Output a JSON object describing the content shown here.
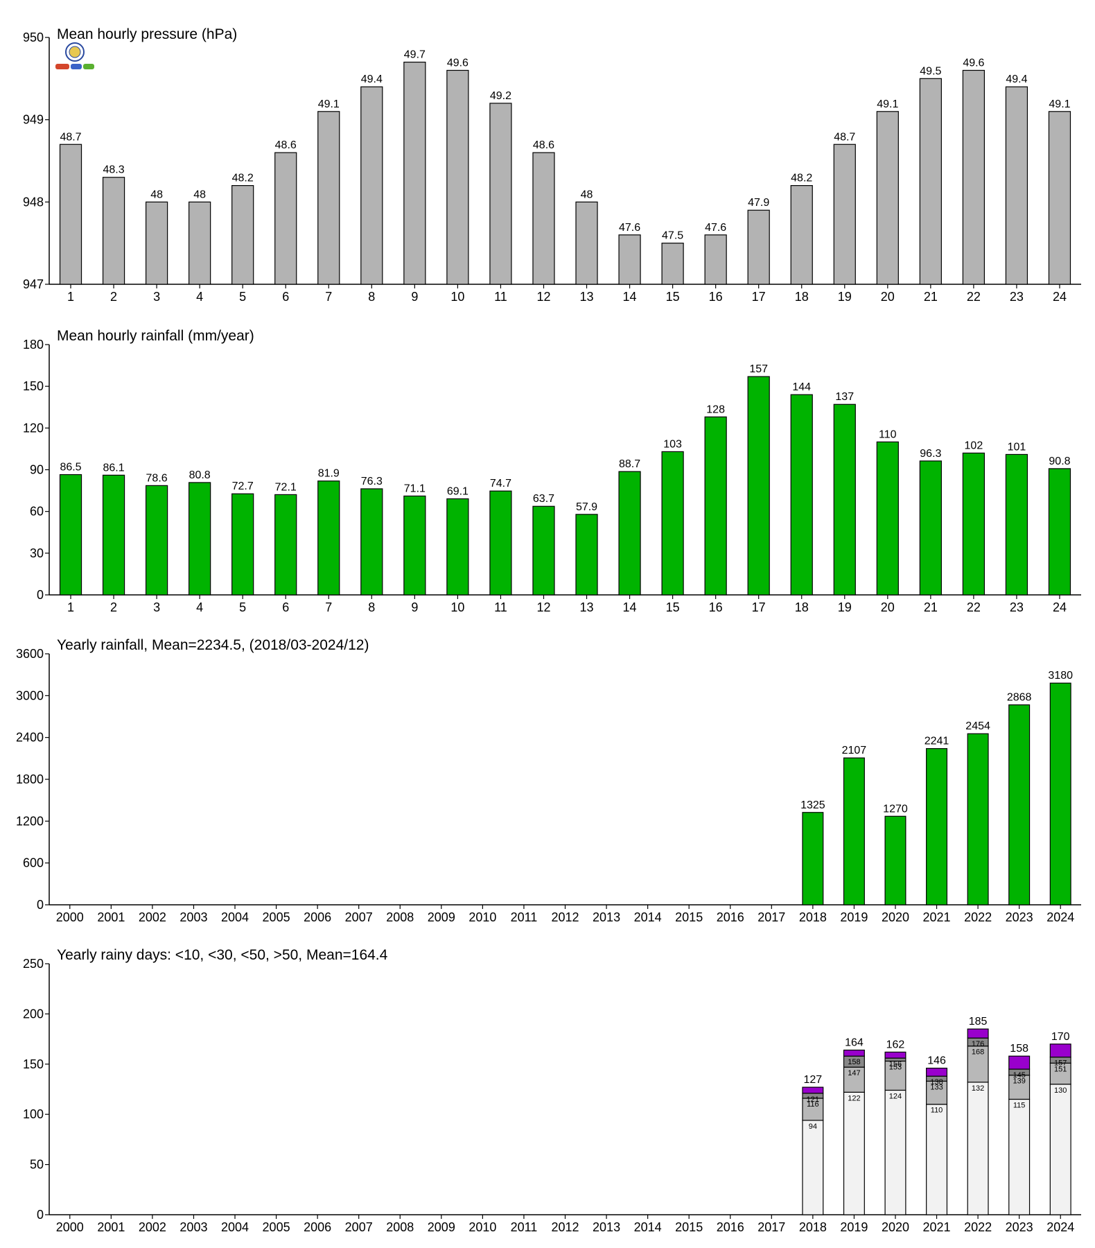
{
  "colors": {
    "pressure_bar": "#b3b3b3",
    "rainfall_bar": "#00b300",
    "rainy_lt10": "#f2f2f2",
    "rainy_lt30": "#b8b8b8",
    "rainy_lt50": "#888888",
    "rainy_gt50": "#9900cc",
    "axis": "#000000"
  },
  "chart_data": [
    {
      "id": "pressure",
      "type": "bar",
      "title": "Mean hourly pressure (hPa)",
      "xlabel": "",
      "ylabel": "",
      "ylim": [
        947,
        950
      ],
      "yticks": [
        947,
        948,
        949,
        950
      ],
      "categories": [
        "1",
        "2",
        "3",
        "4",
        "5",
        "6",
        "7",
        "8",
        "9",
        "10",
        "11",
        "12",
        "13",
        "14",
        "15",
        "16",
        "17",
        "18",
        "19",
        "20",
        "21",
        "22",
        "23",
        "24"
      ],
      "values": [
        948.7,
        948.3,
        948.0,
        948.0,
        948.2,
        948.6,
        949.1,
        949.4,
        949.7,
        949.6,
        949.2,
        948.6,
        948.0,
        947.6,
        947.5,
        947.6,
        947.9,
        948.2,
        948.7,
        949.1,
        949.5,
        949.6,
        949.4,
        949.1
      ],
      "labels": [
        "48.7",
        "48.3",
        "48",
        "48",
        "48.2",
        "48.6",
        "49.1",
        "49.4",
        "49.7",
        "49.6",
        "49.2",
        "48.6",
        "48",
        "47.6",
        "47.5",
        "47.6",
        "47.9",
        "48.2",
        "48.7",
        "49.1",
        "49.5",
        "49.6",
        "49.4",
        "49.1"
      ],
      "grid": false
    },
    {
      "id": "hourly_rain",
      "type": "bar",
      "title": "Mean hourly rainfall (mm/year)",
      "xlabel": "",
      "ylabel": "",
      "ylim": [
        0,
        180
      ],
      "yticks": [
        0,
        30,
        60,
        90,
        120,
        150,
        180
      ],
      "categories": [
        "1",
        "2",
        "3",
        "4",
        "5",
        "6",
        "7",
        "8",
        "9",
        "10",
        "11",
        "12",
        "13",
        "14",
        "15",
        "16",
        "17",
        "18",
        "19",
        "20",
        "21",
        "22",
        "23",
        "24"
      ],
      "values": [
        86.5,
        86.1,
        78.6,
        80.8,
        72.7,
        72.1,
        81.9,
        76.3,
        71.1,
        69.1,
        74.7,
        63.7,
        57.9,
        88.7,
        103,
        128,
        157,
        144,
        137,
        110,
        96.3,
        102,
        101,
        90.8
      ],
      "labels": [
        "86.5",
        "86.1",
        "78.6",
        "80.8",
        "72.7",
        "72.1",
        "81.9",
        "76.3",
        "71.1",
        "69.1",
        "74.7",
        "63.7",
        "57.9",
        "88.7",
        "103",
        "128",
        "157",
        "144",
        "137",
        "110",
        "96.3",
        "102",
        "101",
        "90.8"
      ],
      "grid": false
    },
    {
      "id": "yearly_rain",
      "type": "bar",
      "title": "Yearly rainfall, Mean=2234.5, (2018/03-2024/12)",
      "xlabel": "",
      "ylabel": "",
      "ylim": [
        0,
        3600
      ],
      "yticks": [
        0,
        600,
        1200,
        1800,
        2400,
        3000,
        3600
      ],
      "categories": [
        "2000",
        "2001",
        "2002",
        "2003",
        "2004",
        "2005",
        "2006",
        "2007",
        "2008",
        "2009",
        "2010",
        "2011",
        "2012",
        "2013",
        "2014",
        "2015",
        "2016",
        "2017",
        "2018",
        "2019",
        "2020",
        "2021",
        "2022",
        "2023",
        "2024"
      ],
      "values": [
        null,
        null,
        null,
        null,
        null,
        null,
        null,
        null,
        null,
        null,
        null,
        null,
        null,
        null,
        null,
        null,
        null,
        null,
        1325,
        2107,
        1270,
        2241,
        2454,
        2868,
        3180
      ],
      "labels": [
        "",
        "",
        "",
        "",
        "",
        "",
        "",
        "",
        "",
        "",
        "",
        "",
        "",
        "",
        "",
        "",
        "",
        "",
        "1325",
        "2107",
        "1270",
        "2241",
        "2454",
        "2868",
        "3180"
      ],
      "grid": false
    },
    {
      "id": "rainy_days",
      "type": "bar",
      "stacked": true,
      "title": "Yearly rainy days: <10, <30, <50, >50, Mean=164.4",
      "xlabel": "",
      "ylabel": "",
      "ylim": [
        0,
        250
      ],
      "yticks": [
        0,
        50,
        100,
        150,
        200,
        250
      ],
      "categories": [
        "2000",
        "2001",
        "2002",
        "2003",
        "2004",
        "2005",
        "2006",
        "2007",
        "2008",
        "2009",
        "2010",
        "2011",
        "2012",
        "2013",
        "2014",
        "2015",
        "2016",
        "2017",
        "2018",
        "2019",
        "2020",
        "2021",
        "2022",
        "2023",
        "2024"
      ],
      "cumulative": {
        "lt10": [
          null,
          null,
          null,
          null,
          null,
          null,
          null,
          null,
          null,
          null,
          null,
          null,
          null,
          null,
          null,
          null,
          null,
          null,
          94,
          122,
          124,
          110,
          132,
          115,
          130
        ],
        "lt30": [
          null,
          null,
          null,
          null,
          null,
          null,
          null,
          null,
          null,
          null,
          null,
          null,
          null,
          null,
          null,
          null,
          null,
          null,
          116,
          147,
          153,
          133,
          168,
          139,
          151
        ],
        "lt50": [
          null,
          null,
          null,
          null,
          null,
          null,
          null,
          null,
          null,
          null,
          null,
          null,
          null,
          null,
          null,
          null,
          null,
          null,
          121,
          158,
          156,
          138,
          176,
          145,
          157
        ],
        "gt50": [
          null,
          null,
          null,
          null,
          null,
          null,
          null,
          null,
          null,
          null,
          null,
          null,
          null,
          null,
          null,
          null,
          null,
          null,
          127,
          164,
          162,
          146,
          185,
          158,
          170
        ]
      },
      "grid": false
    }
  ]
}
